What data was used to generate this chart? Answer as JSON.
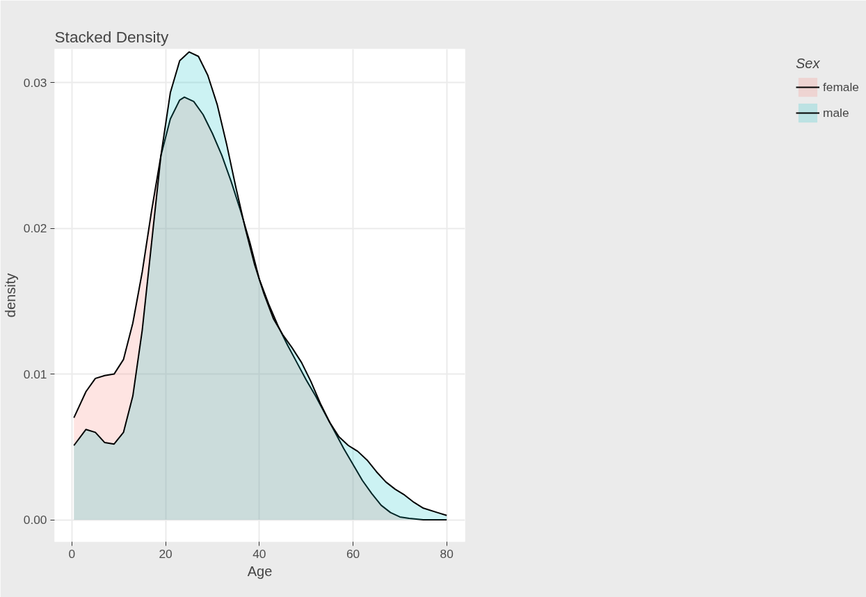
{
  "chart_data": {
    "type": "area",
    "title": "Stacked Density",
    "xlabel": "Age",
    "ylabel": "density",
    "legend_title": "Sex",
    "legend": "right",
    "grid": true,
    "xlim": [
      -3.7,
      83.9
    ],
    "ylim": [
      -0.0015,
      0.0323
    ],
    "xticks": [
      0,
      20,
      40,
      60,
      80
    ],
    "yticks": [
      {
        "value": 0,
        "label": "0.00"
      },
      {
        "value": 0.01,
        "label": "0.01"
      },
      {
        "value": 0.02,
        "label": "0.02"
      },
      {
        "value": 0.03,
        "label": "0.03"
      }
    ],
    "series": [
      {
        "name": "female",
        "color": "#f8766d",
        "x": [
          0.42,
          3,
          5,
          7,
          9,
          11,
          13,
          15,
          17,
          19,
          21,
          23,
          24,
          26,
          28,
          30,
          32,
          34,
          36,
          38,
          40,
          42,
          44,
          46,
          48,
          50,
          52,
          54,
          56,
          58,
          60,
          62,
          64,
          66,
          68,
          70,
          72,
          75,
          80
        ],
        "values": [
          0.007,
          0.0088,
          0.0097,
          0.0099,
          0.01,
          0.011,
          0.0135,
          0.017,
          0.0212,
          0.025,
          0.0275,
          0.0288,
          0.029,
          0.0287,
          0.0278,
          0.0265,
          0.025,
          0.0232,
          0.0212,
          0.019,
          0.0165,
          0.0148,
          0.0133,
          0.012,
          0.0108,
          0.0096,
          0.0085,
          0.0073,
          0.0061,
          0.0049,
          0.0038,
          0.0027,
          0.0018,
          0.001,
          0.0005,
          0.0002,
          0.0001,
          0.0,
          0.0
        ]
      },
      {
        "name": "male",
        "color": "#00bfc4",
        "x": [
          0.42,
          3,
          5,
          7,
          9,
          11,
          13,
          15,
          17,
          19,
          21,
          23,
          25,
          27,
          29,
          31,
          33,
          35,
          37,
          39,
          41,
          43,
          45,
          47,
          49,
          51,
          53,
          55,
          57,
          59,
          61,
          63,
          65,
          67,
          69,
          71,
          73,
          75,
          78,
          80
        ],
        "values": [
          0.0051,
          0.0062,
          0.006,
          0.0053,
          0.0052,
          0.006,
          0.0085,
          0.013,
          0.019,
          0.025,
          0.0293,
          0.0315,
          0.0321,
          0.0318,
          0.0305,
          0.0285,
          0.0258,
          0.0228,
          0.02,
          0.0175,
          0.0155,
          0.0138,
          0.0127,
          0.0118,
          0.0108,
          0.0095,
          0.008,
          0.0067,
          0.0057,
          0.0051,
          0.0047,
          0.0041,
          0.0033,
          0.0026,
          0.0021,
          0.0017,
          0.0012,
          0.0008,
          0.0005,
          0.0003
        ]
      }
    ]
  }
}
